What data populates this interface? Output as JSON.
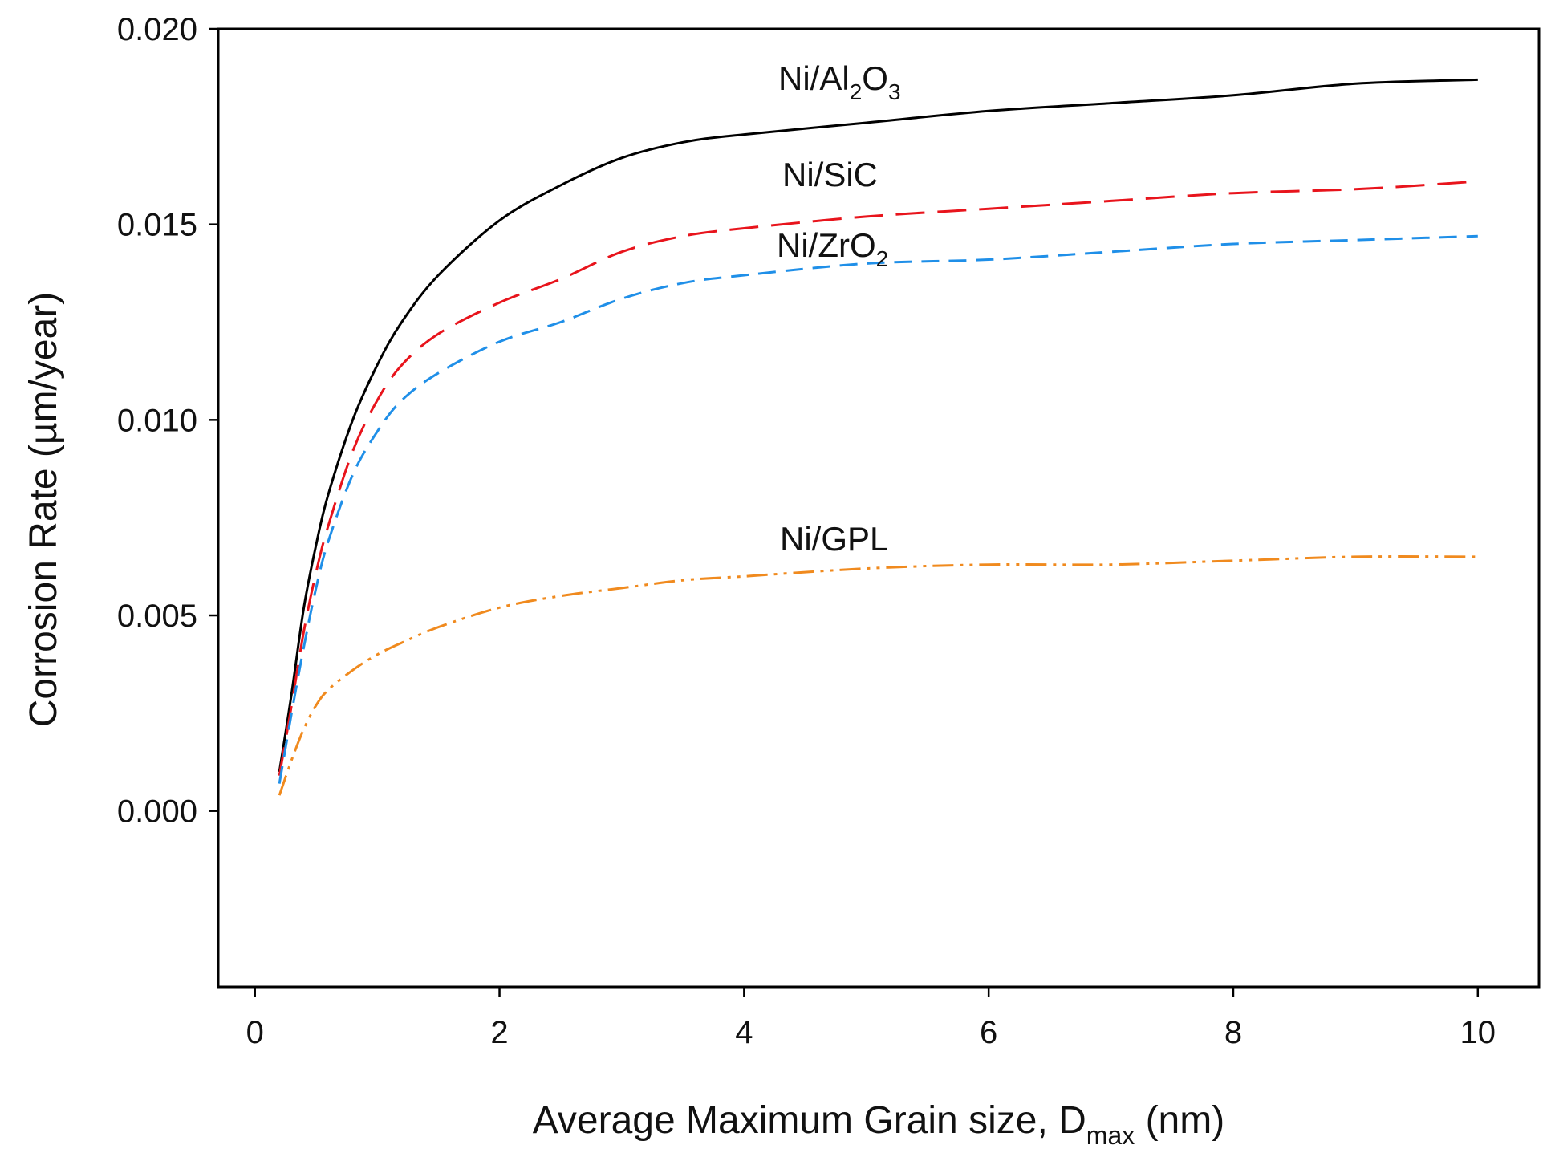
{
  "chart_data": {
    "type": "line",
    "title": "",
    "xlabel": {
      "main": "Average Maximum Grain size, D",
      "sub": "max",
      "unit": " (nm)"
    },
    "ylabel": "Corrosion Rate (µm/year)",
    "xlim": [
      -0.3,
      10.5
    ],
    "ylim": [
      -0.0045,
      0.02
    ],
    "xticks": [
      0,
      2,
      4,
      6,
      8,
      10
    ],
    "xtick_labels": [
      "0",
      "2",
      "4",
      "6",
      "8",
      "10"
    ],
    "yticks": [
      0.0,
      0.005,
      0.01,
      0.015,
      0.02
    ],
    "ytick_labels": [
      "0.000",
      "0.005",
      "0.010",
      "0.015",
      "0.020"
    ],
    "grid": false,
    "series": [
      {
        "name": "Ni/Al2O3",
        "label_main": "Ni/Al",
        "label_sub1": "2",
        "label_mid": "O",
        "label_sub2": "3",
        "color": "#000000",
        "dash": "",
        "x": [
          0.2,
          0.3,
          0.4,
          0.5,
          0.6,
          0.8,
          1.0,
          1.2,
          1.5,
          2.0,
          2.5,
          3.0,
          3.5,
          4.0,
          5.0,
          6.0,
          7.0,
          8.0,
          9.0,
          10.0
        ],
        "y": [
          0.001,
          0.003,
          0.0052,
          0.0068,
          0.0081,
          0.01,
          0.0114,
          0.0125,
          0.0137,
          0.0151,
          0.016,
          0.0167,
          0.0171,
          0.0173,
          0.0176,
          0.0179,
          0.0181,
          0.0183,
          0.0186,
          0.0187
        ]
      },
      {
        "name": "Ni/SiC",
        "label_main": "Ni/SiC",
        "color": "#e8141c",
        "dash": "36,16",
        "x": [
          0.2,
          0.3,
          0.4,
          0.5,
          0.6,
          0.8,
          1.0,
          1.2,
          1.5,
          2.0,
          2.5,
          3.0,
          3.5,
          4.0,
          5.0,
          6.0,
          7.0,
          8.0,
          9.0,
          10.0
        ],
        "y": [
          0.0009,
          0.0027,
          0.0046,
          0.0061,
          0.0073,
          0.0092,
          0.0105,
          0.0114,
          0.0122,
          0.013,
          0.0136,
          0.0143,
          0.0147,
          0.0149,
          0.0152,
          0.0154,
          0.0156,
          0.0158,
          0.0159,
          0.0161
        ]
      },
      {
        "name": "Ni/ZrO2",
        "label_main": "Ni/ZrO",
        "label_sub1": "2",
        "color": "#1f8fe8",
        "dash": "22,12",
        "x": [
          0.2,
          0.3,
          0.4,
          0.5,
          0.6,
          0.8,
          1.0,
          1.2,
          1.5,
          2.0,
          2.5,
          3.0,
          3.5,
          4.0,
          5.0,
          6.0,
          7.0,
          8.0,
          9.0,
          10.0
        ],
        "y": [
          0.0007,
          0.0025,
          0.0042,
          0.0057,
          0.0069,
          0.0086,
          0.0097,
          0.0105,
          0.0112,
          0.012,
          0.0125,
          0.0131,
          0.0135,
          0.0137,
          0.014,
          0.0141,
          0.0143,
          0.0145,
          0.0146,
          0.0147
        ]
      },
      {
        "name": "Ni/GPL",
        "label_main": "Ni/GPL",
        "color": "#f08a1e",
        "dash": "26,8,4,8,4,8",
        "x": [
          0.2,
          0.3,
          0.4,
          0.5,
          0.6,
          0.8,
          1.0,
          1.2,
          1.5,
          2.0,
          2.5,
          3.0,
          3.5,
          4.0,
          5.0,
          6.0,
          7.0,
          8.0,
          9.0,
          10.0
        ],
        "y": [
          0.0004,
          0.0013,
          0.0021,
          0.0027,
          0.0031,
          0.0036,
          0.004,
          0.0043,
          0.0047,
          0.0052,
          0.0055,
          0.0057,
          0.0059,
          0.006,
          0.0062,
          0.0063,
          0.0063,
          0.0064,
          0.0065,
          0.0065
        ]
      }
    ]
  }
}
